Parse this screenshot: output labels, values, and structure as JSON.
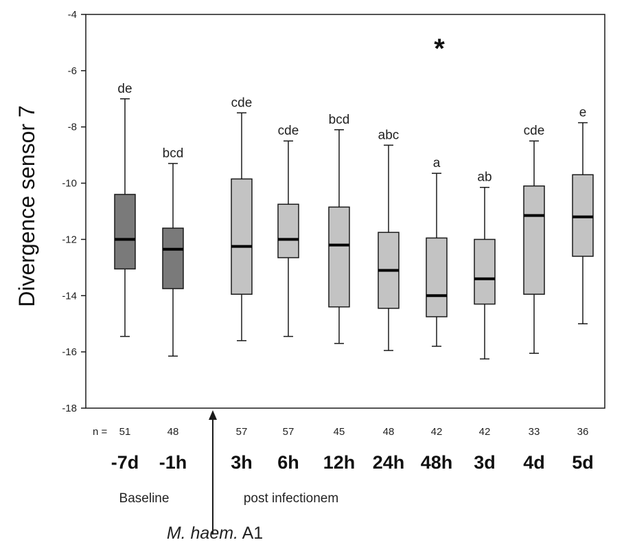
{
  "chart_data": {
    "type": "boxplot",
    "ylabel": "Divergence sensor 7",
    "ylim": [
      -18,
      -4
    ],
    "yticks": [
      -4,
      -6,
      -8,
      -10,
      -12,
      -14,
      -16,
      -18
    ],
    "n_prefix": "n =",
    "annotation": "*",
    "groups": [
      {
        "label": "-7d",
        "n": "51",
        "letters": "de",
        "phase": "baseline",
        "min": -15.45,
        "q1": -13.05,
        "median": -12.0,
        "q3": -10.4,
        "max": -7.0
      },
      {
        "label": "-1h",
        "n": "48",
        "letters": "bcd",
        "phase": "baseline",
        "min": -16.15,
        "q1": -13.75,
        "median": -12.35,
        "q3": -11.6,
        "max": -9.3
      },
      {
        "label": "3h",
        "n": "57",
        "letters": "cde",
        "phase": "post",
        "min": -15.6,
        "q1": -13.95,
        "median": -12.25,
        "q3": -9.85,
        "max": -7.5
      },
      {
        "label": "6h",
        "n": "57",
        "letters": "cde",
        "phase": "post",
        "min": -15.45,
        "q1": -12.65,
        "median": -12.0,
        "q3": -10.75,
        "max": -8.5
      },
      {
        "label": "12h",
        "n": "45",
        "letters": "bcd",
        "phase": "post",
        "min": -15.7,
        "q1": -14.4,
        "median": -12.2,
        "q3": -10.85,
        "max": -8.1
      },
      {
        "label": "24h",
        "n": "48",
        "letters": "abc",
        "phase": "post",
        "min": -15.95,
        "q1": -14.45,
        "median": -13.1,
        "q3": -11.75,
        "max": -8.65
      },
      {
        "label": "48h",
        "n": "42",
        "letters": "a",
        "phase": "post",
        "min": -15.8,
        "q1": -14.75,
        "median": -14.0,
        "q3": -11.95,
        "max": -9.65
      },
      {
        "label": "3d",
        "n": "42",
        "letters": "ab",
        "phase": "post",
        "min": -16.25,
        "q1": -14.3,
        "median": -13.4,
        "q3": -12.0,
        "max": -10.15
      },
      {
        "label": "4d",
        "n": "33",
        "letters": "cde",
        "phase": "post",
        "min": -16.05,
        "q1": -13.95,
        "median": -11.15,
        "q3": -10.1,
        "max": -8.5
      },
      {
        "label": "5d",
        "n": "36",
        "letters": "e",
        "phase": "post",
        "min": -15.0,
        "q1": -12.6,
        "median": -11.2,
        "q3": -9.7,
        "max": -7.85
      }
    ],
    "baseline_label": "Baseline",
    "post_label": "post infectionem",
    "infection_label_italic": "M. haem.",
    "infection_label_plain": " A1",
    "colors": {
      "baseline_box": "#7a7a7a",
      "post_box": "#c3c3c3",
      "line": "#1a1a1a"
    }
  }
}
